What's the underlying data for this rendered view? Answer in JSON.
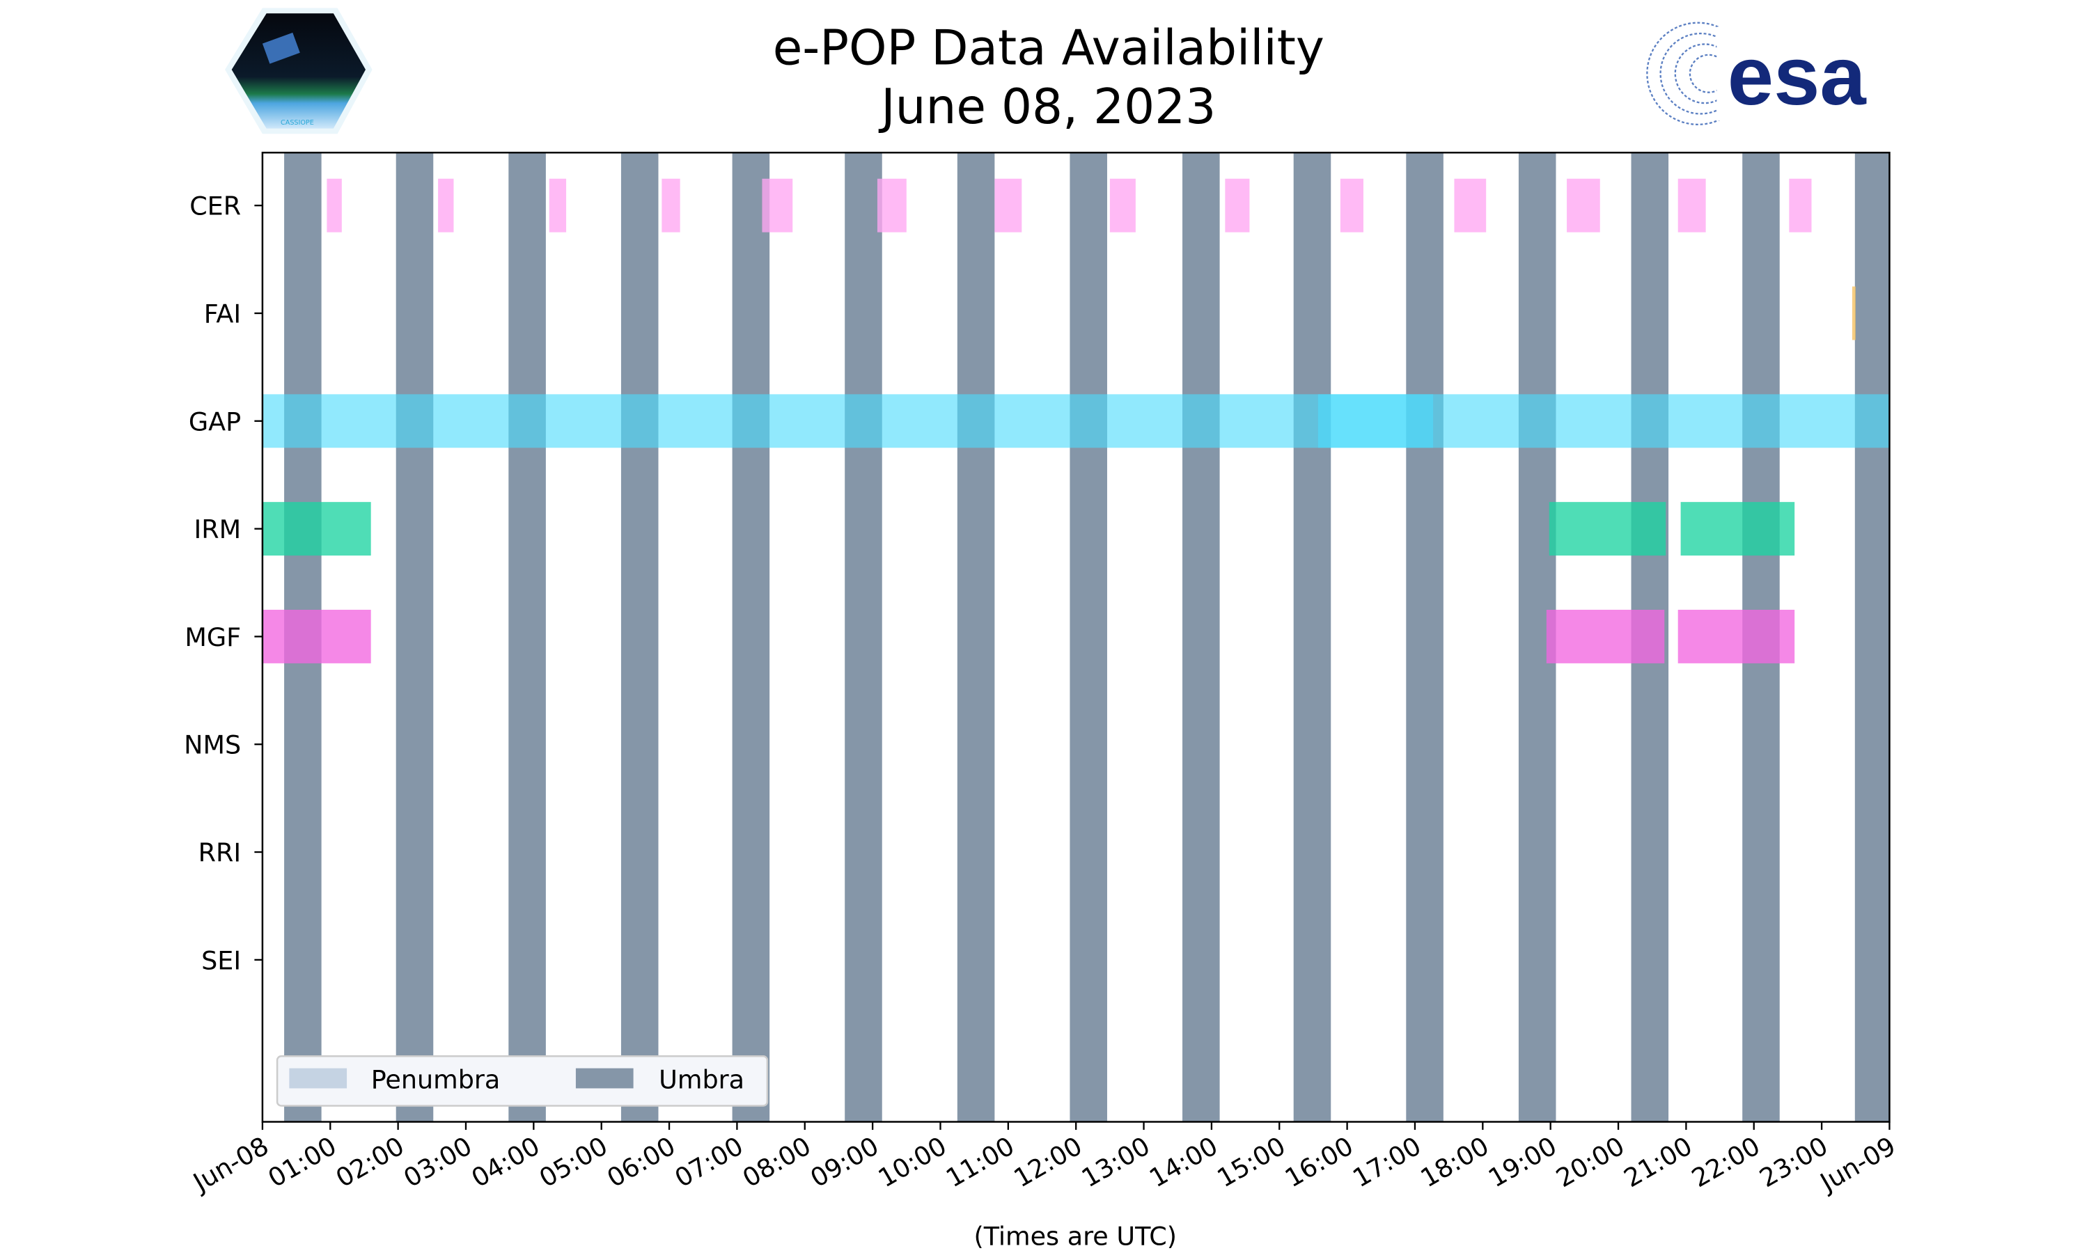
{
  "chart_data": {
    "type": "timeline",
    "title": "e-POP Data Availability",
    "subtitle": "June 08, 2023",
    "xlabel": "(Times are UTC)",
    "xlim_hours": [
      0,
      24
    ],
    "x_tick_labels": [
      "Jun-08",
      "01:00",
      "02:00",
      "03:00",
      "04:00",
      "05:00",
      "06:00",
      "07:00",
      "08:00",
      "09:00",
      "10:00",
      "11:00",
      "12:00",
      "13:00",
      "14:00",
      "15:00",
      "16:00",
      "17:00",
      "18:00",
      "19:00",
      "20:00",
      "21:00",
      "22:00",
      "23:00",
      "Jun-09"
    ],
    "categories": [
      "CER",
      "FAI",
      "GAP",
      "IRM",
      "MGF",
      "NMS",
      "RRI",
      "SEI"
    ],
    "series": [
      {
        "name": "CER",
        "color": "#ffa6f2",
        "intervals": [
          [
            0.95,
            1.17
          ],
          [
            2.59,
            2.82
          ],
          [
            4.23,
            4.48
          ],
          [
            5.89,
            6.16
          ],
          [
            7.37,
            7.82
          ],
          [
            9.07,
            9.5
          ],
          [
            10.8,
            11.2
          ],
          [
            12.5,
            12.88
          ],
          [
            14.2,
            14.56
          ],
          [
            15.9,
            16.24
          ],
          [
            17.58,
            18.05
          ],
          [
            19.24,
            19.73
          ],
          [
            20.88,
            21.29
          ],
          [
            22.52,
            22.85
          ]
        ]
      },
      {
        "name": "FAI",
        "color": "#f5c060",
        "intervals": [
          [
            23.45,
            23.5
          ]
        ]
      },
      {
        "name": "GAP",
        "color": "#4ddcfb",
        "intervals": [
          [
            0,
            15.57
          ],
          [
            15.57,
            17.27
          ],
          [
            17.27,
            24
          ],
          [
            15.57,
            17.27
          ]
        ]
      },
      {
        "name": "IRM",
        "color": "#1ed3a2",
        "intervals": [
          [
            0,
            1.6
          ],
          [
            18.98,
            20.7
          ],
          [
            20.92,
            22.6
          ]
        ]
      },
      {
        "name": "MGF",
        "color": "#f266e0",
        "intervals": [
          [
            0,
            1.6
          ],
          [
            18.94,
            20.68
          ],
          [
            20.88,
            22.6
          ]
        ]
      },
      {
        "name": "NMS",
        "color": "#999999",
        "intervals": []
      },
      {
        "name": "RRI",
        "color": "#999999",
        "intervals": []
      },
      {
        "name": "SEI",
        "color": "#999999",
        "intervals": []
      }
    ],
    "umbra": {
      "color": "#8596a8",
      "intervals": [
        [
          0.32,
          0.87
        ],
        [
          1.97,
          2.52
        ],
        [
          3.63,
          4.18
        ],
        [
          5.29,
          5.84
        ],
        [
          6.93,
          7.48
        ],
        [
          8.59,
          9.14
        ],
        [
          10.25,
          10.8
        ],
        [
          11.91,
          12.46
        ],
        [
          13.57,
          14.12
        ],
        [
          15.21,
          15.76
        ],
        [
          16.87,
          17.42
        ],
        [
          18.53,
          19.08
        ],
        [
          20.19,
          20.74
        ],
        [
          21.83,
          22.38
        ],
        [
          23.49,
          24
        ]
      ]
    },
    "penumbra": {
      "color": "#c5d3e3",
      "intervals": []
    },
    "legend": {
      "placement": "lower-left",
      "entries": [
        {
          "label": "Penumbra",
          "color": "#c5d3e3"
        },
        {
          "label": "Umbra",
          "color": "#8596a8"
        }
      ]
    }
  },
  "logos": {
    "left_text": "CASSIOPE",
    "right_text": "esa"
  }
}
